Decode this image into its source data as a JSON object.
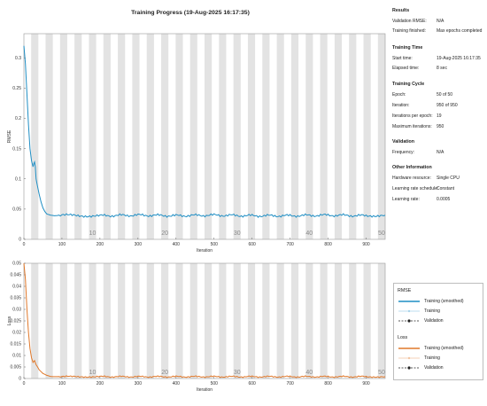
{
  "title": "Training Progress (19-Aug-2025 16:17:35)",
  "info": {
    "results": {
      "title": "Results",
      "rows": [
        {
          "label": "Validation RMSE:",
          "value": "N/A"
        },
        {
          "label": "Training finished:",
          "value": "Max epochs completed"
        }
      ]
    },
    "time": {
      "title": "Training Time",
      "rows": [
        {
          "label": "Start time:",
          "value": "19-Aug-2025 16:17:35"
        },
        {
          "label": "Elapsed time:",
          "value": "8 sec"
        }
      ]
    },
    "cycle": {
      "title": "Training Cycle",
      "rows": [
        {
          "label": "Epoch:",
          "value": "50 of 50"
        },
        {
          "label": "Iteration:",
          "value": "950 of 950"
        },
        {
          "label": "Iterations per epoch:",
          "value": "19"
        },
        {
          "label": "Maximum iterations:",
          "value": "950"
        }
      ]
    },
    "validation": {
      "title": "Validation",
      "rows": [
        {
          "label": "Frequency:",
          "value": "N/A"
        }
      ]
    },
    "other": {
      "title": "Other Information",
      "rows": [
        {
          "label": "Hardware resource:",
          "value": "Single CPU"
        },
        {
          "label": "Learning rate schedule:",
          "value": "Constant"
        },
        {
          "label": "Learning rate:",
          "value": "0.0005"
        }
      ]
    }
  },
  "legend": {
    "rmse_title": "RMSE",
    "loss_title": "Loss",
    "training_smoothed": "Training (smoothed)",
    "training": "Training",
    "validation": "Validation"
  },
  "colors": {
    "rmse": "#1f8ec4",
    "loss": "#e0782a",
    "band": "#e3e3e3"
  },
  "icons": {
    "settings": "gear-icon"
  },
  "chart_data": [
    {
      "type": "line",
      "ylabel": "RMSE",
      "xlabel": "Iteration",
      "xlim": [
        0,
        950
      ],
      "ylim": [
        0,
        0.34
      ],
      "xticks": [
        0,
        100,
        200,
        300,
        400,
        500,
        600,
        700,
        800,
        900
      ],
      "yticks": [
        0,
        0.05,
        0.1,
        0.15,
        0.2,
        0.25,
        0.3
      ],
      "ytick_labels": [
        "0",
        "0.05",
        "0.1",
        "0.15",
        "0.2",
        "0.25",
        "0.3"
      ],
      "epoch_labels": [
        "10",
        "20",
        "30",
        "40",
        "50"
      ],
      "series": [
        {
          "x": [
            0,
            4,
            8,
            12,
            16,
            20,
            24,
            26,
            28,
            30,
            32,
            35,
            40,
            45,
            50,
            55,
            60,
            70,
            80,
            100,
            150,
            200,
            300,
            400,
            500,
            600,
            700,
            800,
            900,
            950
          ],
          "values": [
            0.32,
            0.29,
            0.24,
            0.19,
            0.15,
            0.13,
            0.12,
            0.125,
            0.128,
            0.12,
            0.1,
            0.09,
            0.075,
            0.062,
            0.052,
            0.046,
            0.042,
            0.04,
            0.039,
            0.04,
            0.039,
            0.039,
            0.04,
            0.039,
            0.04,
            0.039,
            0.039,
            0.04,
            0.039,
            0.04
          ]
        }
      ],
      "grid": true
    },
    {
      "type": "line",
      "ylabel": "Loss",
      "xlabel": "Iteration",
      "xlim": [
        0,
        950
      ],
      "ylim": [
        0,
        0.05
      ],
      "xticks": [
        0,
        100,
        200,
        300,
        400,
        500,
        600,
        700,
        800,
        900
      ],
      "yticks": [
        0,
        0.005,
        0.01,
        0.015,
        0.02,
        0.025,
        0.03,
        0.035,
        0.04,
        0.045,
        0.05
      ],
      "ytick_labels": [
        "0",
        "0.005",
        "0.01",
        "0.015",
        "0.02",
        "0.025",
        "0.03",
        "0.035",
        "0.04",
        "0.045",
        "0.05"
      ],
      "epoch_labels": [
        "10",
        "20",
        "30",
        "40",
        "50"
      ],
      "series": [
        {
          "x": [
            0,
            4,
            8,
            12,
            16,
            20,
            24,
            28,
            32,
            36,
            40,
            45,
            50,
            60,
            70,
            80,
            100,
            150,
            200,
            300,
            400,
            500,
            600,
            700,
            800,
            900,
            950
          ],
          "values": [
            0.05,
            0.043,
            0.03,
            0.02,
            0.013,
            0.009,
            0.007,
            0.0078,
            0.006,
            0.005,
            0.0038,
            0.003,
            0.0022,
            0.0014,
            0.0009,
            0.0008,
            0.0008,
            0.0008,
            0.0008,
            0.0008,
            0.0008,
            0.0008,
            0.0008,
            0.0008,
            0.0008,
            0.0008,
            0.0008
          ]
        }
      ],
      "grid": true
    }
  ]
}
